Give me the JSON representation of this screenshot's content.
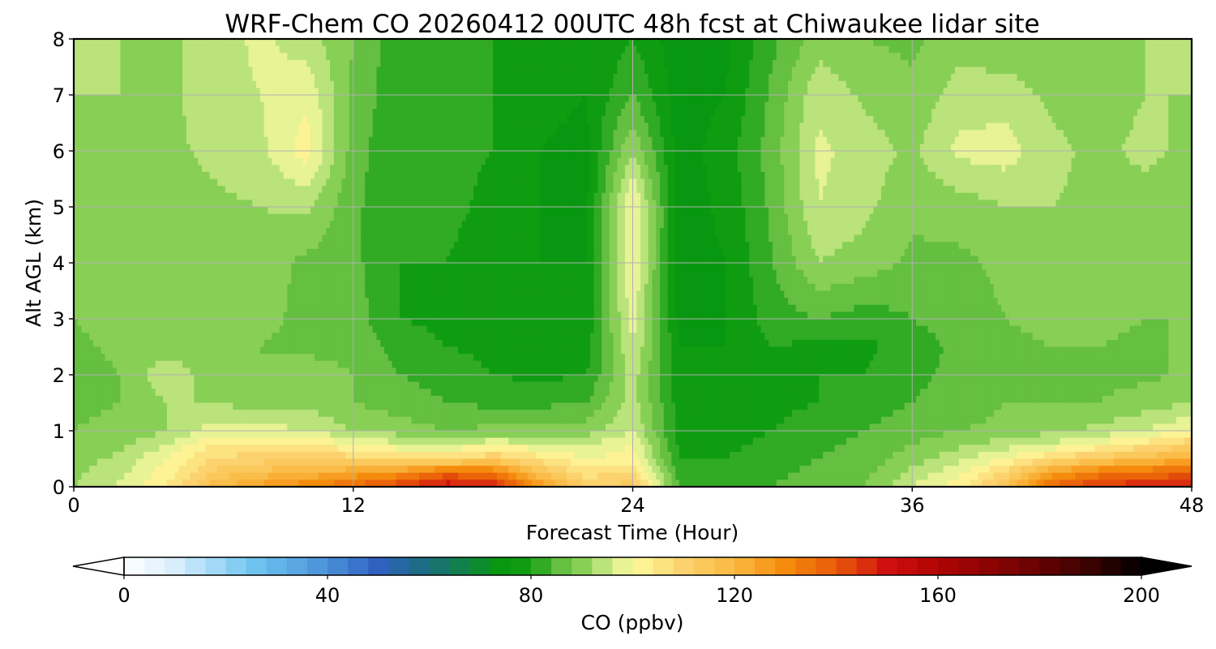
{
  "chart_data": {
    "type": "heatmap",
    "title": "WRF-Chem CO  20260412 00UTC 48h fcst at Chiwaukee lidar site",
    "xlabel": "Forecast Time (Hour)",
    "ylabel": "Alt AGL (km)",
    "xlim": [
      0,
      48
    ],
    "ylim": [
      0,
      8
    ],
    "x_ticks": [
      0,
      12,
      24,
      36,
      48
    ],
    "y_ticks": [
      0,
      1,
      2,
      3,
      4,
      5,
      6,
      7,
      8
    ],
    "grid": true,
    "x": [
      0,
      2,
      4,
      6,
      8,
      10,
      12,
      14,
      16,
      18,
      20,
      22,
      24,
      26,
      28,
      30,
      32,
      34,
      36,
      38,
      40,
      42,
      44,
      46,
      48
    ],
    "y": [
      0,
      0.25,
      0.5,
      0.75,
      1,
      1.5,
      2,
      2.5,
      3,
      4,
      5,
      6,
      7,
      8
    ],
    "z": [
      [
        92,
        97,
        104,
        118,
        126,
        132,
        138,
        145,
        152,
        150,
        128,
        112,
        114,
        84,
        82,
        84,
        86,
        88,
        96,
        102,
        116,
        138,
        146,
        148,
        150
      ],
      [
        91,
        95,
        102,
        113,
        117,
        120,
        124,
        128,
        137,
        134,
        116,
        106,
        108,
        82,
        81,
        83,
        85,
        87,
        93,
        99,
        109,
        125,
        133,
        136,
        138
      ],
      [
        90,
        93,
        100,
        108,
        110,
        112,
        110,
        108,
        108,
        112,
        106,
        100,
        102,
        80,
        80,
        82,
        84,
        86,
        90,
        95,
        100,
        108,
        114,
        118,
        122
      ],
      [
        89,
        91,
        96,
        104,
        106,
        105,
        100,
        97,
        96,
        99,
        97,
        96,
        100,
        79,
        79,
        81,
        83,
        85,
        88,
        91,
        94,
        97,
        101,
        106,
        112
      ],
      [
        88,
        89,
        92,
        98,
        98,
        96,
        92,
        90,
        88,
        89,
        89,
        90,
        96,
        78,
        78,
        80,
        82,
        84,
        86,
        88,
        89,
        91,
        93,
        96,
        100
      ],
      [
        87,
        88,
        92,
        92,
        90,
        91,
        88,
        86,
        84,
        83,
        83,
        84,
        94,
        78,
        78,
        79,
        80,
        82,
        84,
        86,
        88,
        88,
        88,
        90,
        92
      ],
      [
        86,
        88,
        95,
        90,
        88,
        90,
        88,
        84,
        82,
        80,
        79,
        80,
        94,
        77,
        77,
        79,
        80,
        80,
        83,
        85,
        87,
        87,
        87,
        87,
        89
      ],
      [
        87,
        89,
        90,
        89,
        88,
        87,
        87,
        82,
        80,
        79,
        78,
        78,
        96,
        76,
        76,
        80,
        79,
        79,
        82,
        85,
        87,
        88,
        88,
        87,
        89
      ],
      [
        88,
        90,
        89,
        88,
        89,
        87,
        86,
        80,
        79,
        78,
        77,
        77,
        98,
        75,
        76,
        82,
        84,
        82,
        84,
        86,
        88,
        89,
        89,
        88,
        88
      ],
      [
        89,
        91,
        89,
        89,
        90,
        87,
        85,
        80,
        80,
        78,
        76,
        76,
        100,
        74,
        76,
        84,
        92,
        90,
        87,
        87,
        89,
        90,
        90,
        89,
        89
      ],
      [
        90,
        92,
        90,
        91,
        92,
        93,
        85,
        80,
        81,
        79,
        76,
        75,
        101,
        74,
        77,
        85,
        96,
        93,
        89,
        90,
        92,
        92,
        91,
        90,
        90
      ],
      [
        91,
        92,
        91,
        93,
        95,
        102,
        86,
        80,
        81,
        80,
        76,
        75,
        92,
        74,
        78,
        86,
        97,
        94,
        91,
        97,
        98,
        93,
        91,
        93,
        91
      ],
      [
        92,
        92,
        91,
        94,
        96,
        99,
        87,
        81,
        82,
        80,
        77,
        76,
        84,
        74,
        76,
        85,
        95,
        91,
        89,
        94,
        94,
        91,
        90,
        92,
        92
      ],
      [
        93,
        92,
        91,
        94,
        97,
        94,
        88,
        81,
        82,
        80,
        77,
        76,
        80,
        73,
        75,
        83,
        90,
        88,
        87,
        90,
        89,
        89,
        90,
        92,
        93
      ]
    ],
    "colorbar": {
      "label": "CO  (ppbv)",
      "min": 0,
      "max": 200,
      "ticks": [
        0,
        40,
        80,
        120,
        160,
        200
      ],
      "extend": "both",
      "colormap": [
        [
          0,
          "#ffffff"
        ],
        [
          10,
          "#d8eefc"
        ],
        [
          25,
          "#70c6f0"
        ],
        [
          40,
          "#4a90d8"
        ],
        [
          50,
          "#3060c0"
        ],
        [
          60,
          "#1a6e7a"
        ],
        [
          75,
          "#079a0a"
        ],
        [
          80,
          "#149e16"
        ],
        [
          85,
          "#5cbb3a"
        ],
        [
          90,
          "#88cf56"
        ],
        [
          95,
          "#c6e884"
        ],
        [
          100,
          "#fdfb9e"
        ],
        [
          110,
          "#fcd26e"
        ],
        [
          120,
          "#fab840"
        ],
        [
          130,
          "#f58b0c"
        ],
        [
          140,
          "#e85a0a"
        ],
        [
          150,
          "#d01010"
        ],
        [
          160,
          "#b00404"
        ],
        [
          175,
          "#7a0303"
        ],
        [
          190,
          "#3a0101"
        ],
        [
          200,
          "#000000"
        ]
      ]
    }
  }
}
